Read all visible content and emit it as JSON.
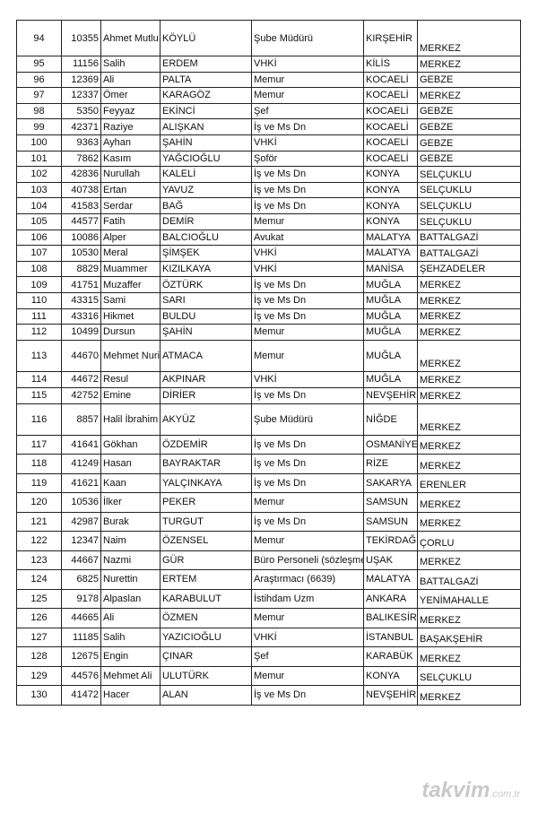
{
  "table": {
    "rows": [
      [
        "94",
        "10355",
        "Ahmet Mutlu",
        "KÖYLÜ",
        "Şube Müdürü",
        "KIRŞEHİR",
        "MERKEZ"
      ],
      [
        "95",
        "11156",
        "Salih",
        "ERDEM",
        "VHKİ",
        "KİLİS",
        "MERKEZ"
      ],
      [
        "96",
        "12369",
        "Ali",
        "PALTA",
        "Memur",
        "KOCAELİ",
        "GEBZE"
      ],
      [
        "97",
        "12337",
        "Ömer",
        "KARAGÖZ",
        "Memur",
        "KOCAELİ",
        "MERKEZ"
      ],
      [
        "98",
        "5350",
        "Feyyaz",
        "EKİNCİ",
        "Şef",
        "KOCAELİ",
        "GEBZE"
      ],
      [
        "99",
        "42371",
        "Raziye",
        "ALIŞKAN",
        "İş ve Ms Dn",
        "KOCAELİ",
        "GEBZE"
      ],
      [
        "100",
        "9363",
        "Ayhan",
        "ŞAHİN",
        "VHKİ",
        "KOCAELİ",
        "GEBZE"
      ],
      [
        "101",
        "7862",
        "Kasım",
        "YAĞCIOĞLU",
        "Şoför",
        "KOCAELİ",
        "GEBZE"
      ],
      [
        "102",
        "42836",
        "Nurullah",
        "KALELİ",
        "İş ve Ms Dn",
        "KONYA",
        "SELÇUKLU"
      ],
      [
        "103",
        "40738",
        "Ertan",
        "YAVUZ",
        "İş ve Ms Dn",
        "KONYA",
        "SELÇUKLU"
      ],
      [
        "104",
        "41583",
        "Serdar",
        "BAĞ",
        "İş ve Ms Dn",
        "KONYA",
        "SELÇUKLU"
      ],
      [
        "105",
        "44577",
        "Fatih",
        "DEMİR",
        "Memur",
        "KONYA",
        "SELÇUKLU"
      ],
      [
        "106",
        "10086",
        "Alper",
        "BALCIOĞLU",
        "Avukat",
        "MALATYA",
        "BATTALGAZİ"
      ],
      [
        "107",
        "10530",
        "Meral",
        "ŞİMŞEK",
        "VHKİ",
        "MALATYA",
        "BATTALGAZİ"
      ],
      [
        "108",
        "8829",
        "Muammer",
        "KIZILKAYA",
        "VHKİ",
        "MANİSA",
        "ŞEHZADELER"
      ],
      [
        "109",
        "41751",
        "Muzaffer",
        "ÖZTÜRK",
        "İş ve Ms Dn",
        "MUĞLA",
        "MERKEZ"
      ],
      [
        "110",
        "43315",
        "Sami",
        "SARI",
        "İş ve Ms Dn",
        "MUĞLA",
        "MERKEZ"
      ],
      [
        "111",
        "43316",
        "Hikmet",
        "BULDU",
        "İş ve Ms Dn",
        "MUĞLA",
        "MERKEZ"
      ],
      [
        "112",
        "10499",
        "Dursun",
        "ŞAHİN",
        "Memur",
        "MUĞLA",
        "MERKEZ"
      ],
      [
        "113",
        "44670",
        "Mehmet Nuri",
        "ATMACA",
        "Memur",
        "MUĞLA",
        "MERKEZ"
      ],
      [
        "114",
        "44672",
        "Resul",
        "AKPINAR",
        "VHKİ",
        "MUĞLA",
        "MERKEZ"
      ],
      [
        "115",
        "42752",
        "Emine",
        "DİRİER",
        "İş ve Ms Dn",
        "NEVŞEHİR",
        "MERKEZ"
      ],
      [
        "116",
        "8857",
        "Halil İbrahim",
        "AKYÜZ",
        "Şube Müdürü",
        "NİĞDE",
        "MERKEZ"
      ],
      [
        "117",
        "41641",
        "Gökhan",
        "ÖZDEMİR",
        "İş ve Ms Dn",
        "OSMANİYE",
        "MERKEZ"
      ],
      [
        "118",
        "41249",
        "Hasan",
        "BAYRAKTAR",
        "İş ve Ms Dn",
        "RİZE",
        "MERKEZ"
      ],
      [
        "119",
        "41621",
        "Kaan",
        "YALÇINKAYA",
        "İş ve Ms Dn",
        "SAKARYA",
        "ERENLER"
      ],
      [
        "120",
        "10536",
        "İlker",
        "PEKER",
        "Memur",
        "SAMSUN",
        "MERKEZ"
      ],
      [
        "121",
        "42987",
        "Burak",
        "TURGUT",
        "İş ve Ms Dn",
        "SAMSUN",
        "MERKEZ"
      ],
      [
        "122",
        "12347",
        "Naim",
        "ÖZENSEL",
        "Memur",
        "TEKİRDAĞ",
        "ÇORLU"
      ],
      [
        "123",
        "44667",
        "Nazmi",
        "GÜR",
        "Büro Personeli (sözleşme",
        "UŞAK",
        "MERKEZ"
      ],
      [
        "124",
        "6825",
        "Nurettin",
        "ERTEM",
        "Araştırmacı (6639)",
        "MALATYA",
        "BATTALGAZİ"
      ],
      [
        "125",
        "9178",
        "Alpaslan",
        "KARABULUT",
        "İstihdam Uzm",
        "ANKARA",
        "YENİMAHALLE"
      ],
      [
        "126",
        "44665",
        "Ali",
        "ÖZMEN",
        "Memur",
        "BALIKESİR",
        "MERKEZ"
      ],
      [
        "127",
        "11185",
        "Salih",
        "YAZICIOĞLU",
        "VHKİ",
        "İSTANBUL",
        "BAŞAKŞEHİR"
      ],
      [
        "128",
        "12675",
        "Engin",
        "ÇINAR",
        "Şef",
        "KARABÜK",
        "MERKEZ"
      ],
      [
        "129",
        "44576",
        "Mehmet Ali",
        "ULUTÜRK",
        "Memur",
        "KONYA",
        "SELÇUKLU"
      ],
      [
        "130",
        "41472",
        "Hacer",
        "ALAN",
        "İş ve Ms Dn",
        "NEVŞEHİR",
        "MERKEZ"
      ]
    ]
  },
  "watermark": {
    "brand": "takvim",
    "domain": ".com.tr"
  }
}
